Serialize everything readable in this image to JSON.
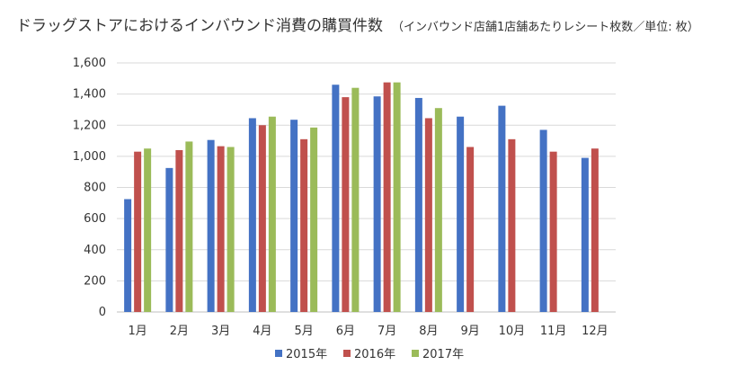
{
  "chart_data": {
    "type": "bar",
    "title": "ドラッグストアにおけるインバウンド消費の購買件数",
    "subtitle": "（インバウンド店舗1店舗あたりレシート枚数／単位: 枚）",
    "categories": [
      "1月",
      "2月",
      "3月",
      "4月",
      "5月",
      "6月",
      "7月",
      "8月",
      "9月",
      "10月",
      "11月",
      "12月"
    ],
    "series": [
      {
        "name": "2015年",
        "color": "#4472C4",
        "values": [
          725,
          925,
          1105,
          1245,
          1235,
          1460,
          1385,
          1375,
          1255,
          1325,
          1170,
          990
        ]
      },
      {
        "name": "2016年",
        "color": "#C0504D",
        "values": [
          1030,
          1040,
          1065,
          1200,
          1110,
          1380,
          1475,
          1245,
          1060,
          1110,
          1030,
          1050
        ]
      },
      {
        "name": "2017年",
        "color": "#9BBB59",
        "values": [
          1050,
          1095,
          1060,
          1255,
          1185,
          1440,
          1475,
          1310,
          null,
          null,
          null,
          null
        ]
      }
    ],
    "yticks": [
      "0",
      "200",
      "400",
      "600",
      "800",
      "1,000",
      "1,200",
      "1,400",
      "1,600"
    ],
    "ylim": [
      0,
      1600
    ],
    "grid": true,
    "legend": "bottom"
  }
}
